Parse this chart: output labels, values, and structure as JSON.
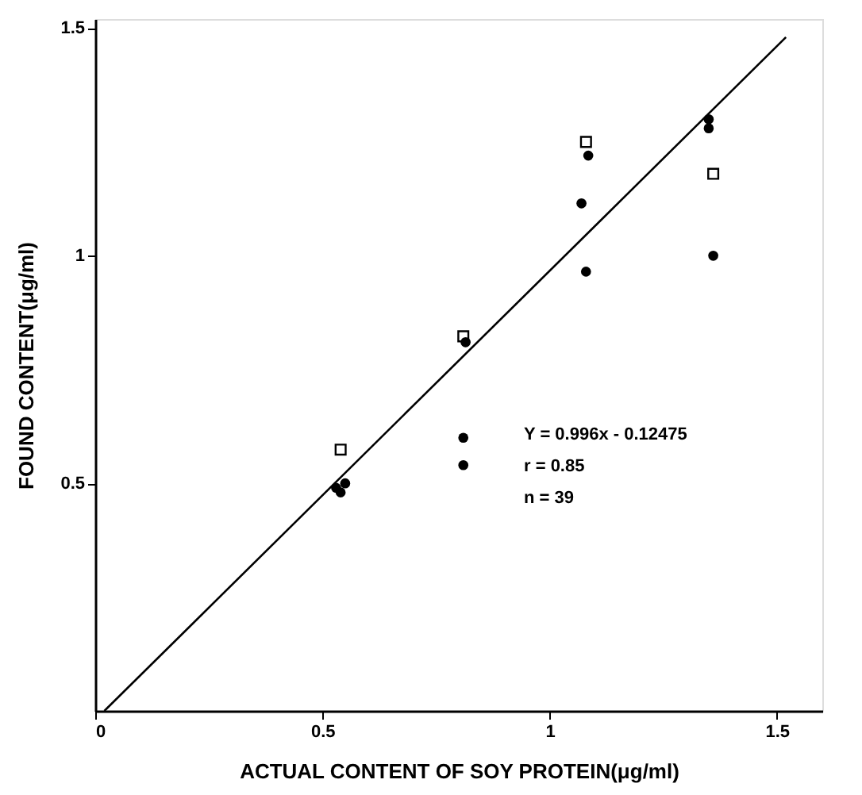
{
  "chart_data": {
    "type": "scatter",
    "xlabel": "ACTUAL CONTENT OF SOY PROTEIN(μg/ml)",
    "ylabel": "FOUND CONTENT(μg/ml)",
    "xlim": [
      0,
      1.6
    ],
    "ylim": [
      0,
      1.52
    ],
    "xticks": [
      0,
      0.5,
      1,
      1.5
    ],
    "yticks": [
      0.5,
      1,
      1.5
    ],
    "grid": false,
    "series": [
      {
        "type": "scatter",
        "marker": "square",
        "color": "#000000",
        "x": [
          0.54,
          0.81,
          1.08,
          1.36
        ],
        "values": [
          0.574,
          0.823,
          1.25,
          1.18
        ]
      },
      {
        "type": "scatter",
        "marker": "circle",
        "color": "#000000",
        "x": [
          0.55,
          0.54,
          0.815,
          0.81,
          1.085,
          1.07,
          1.35,
          1.35
        ],
        "values": [
          0.5,
          0.48,
          0.81,
          0.6,
          1.22,
          1.115,
          1.3,
          1.28
        ]
      },
      {
        "type": "scatter",
        "marker": "circle",
        "color": "#000000",
        "x": [
          0.53,
          0.81,
          1.08,
          1.36
        ],
        "values": [
          0.49,
          0.54,
          0.965,
          1.0
        ]
      },
      {
        "type": "line",
        "marker": "none",
        "color": "#000000",
        "x": [
          0.02,
          1.52
        ],
        "values": [
          0,
          1.48
        ]
      }
    ],
    "annotations": [
      "Y = 0.996x - 0.12475",
      "r = 0.85",
      "n = 39"
    ]
  }
}
